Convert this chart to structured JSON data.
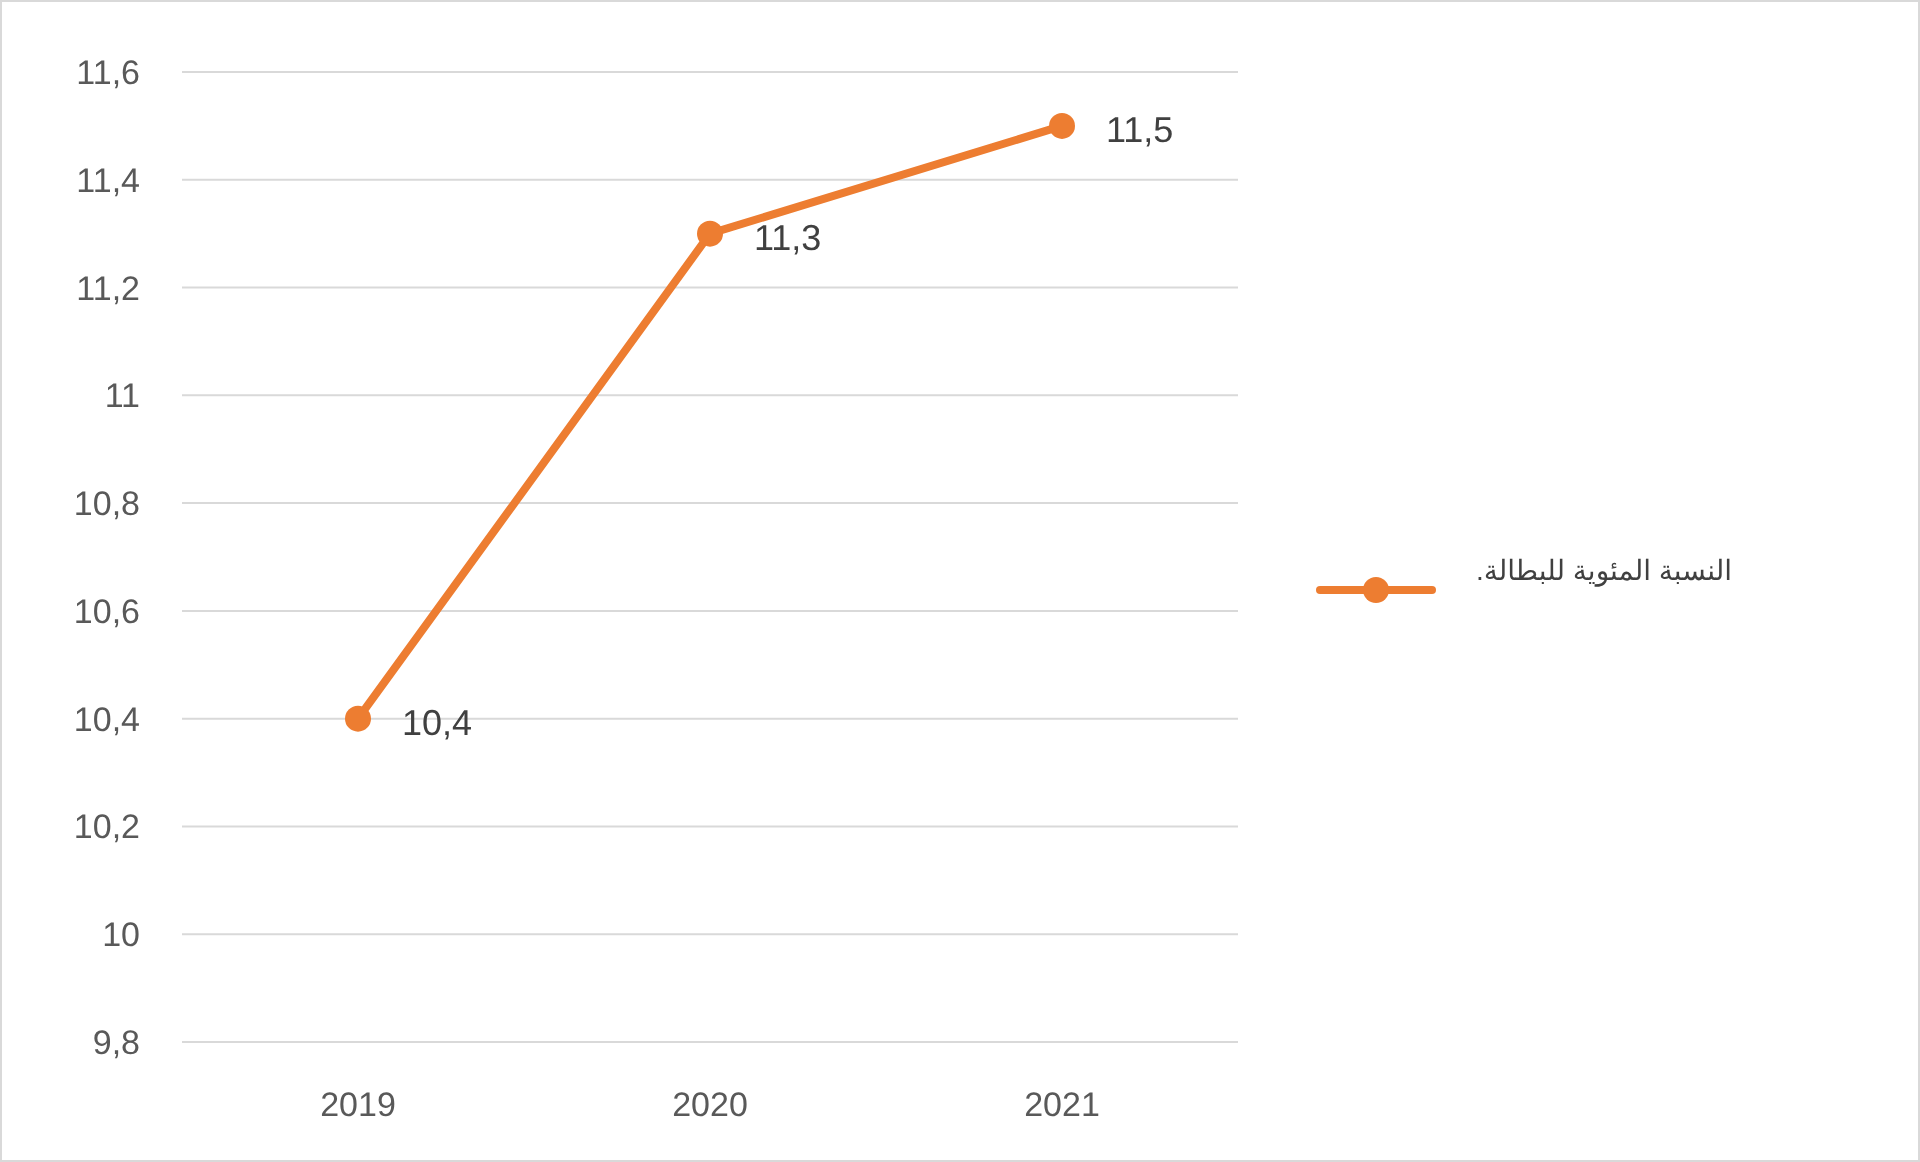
{
  "chart_data": {
    "type": "line",
    "categories": [
      "2019",
      "2020",
      "2021"
    ],
    "series": [
      {
        "name": "النسبة المئوية للبطالة.",
        "color": "#ed7d31",
        "values": [
          10.4,
          11.3,
          11.5
        ],
        "value_labels": [
          "10,4",
          "11,3",
          "11,5"
        ]
      }
    ],
    "ylim": [
      9.8,
      11.6
    ],
    "yticks": [
      {
        "value": 9.8,
        "label": "9,8"
      },
      {
        "value": 10,
        "label": "10"
      },
      {
        "value": 10.2,
        "label": "10,2"
      },
      {
        "value": 10.4,
        "label": "10,4"
      },
      {
        "value": 10.6,
        "label": "10,6"
      },
      {
        "value": 10.8,
        "label": "10,8"
      },
      {
        "value": 11,
        "label": "11"
      },
      {
        "value": 11.2,
        "label": "11,2"
      },
      {
        "value": 11.4,
        "label": "11,4"
      },
      {
        "value": 11.6,
        "label": "11,6"
      }
    ],
    "grid": "y",
    "legend": "right",
    "marker": "circle",
    "line_style": "solid"
  }
}
